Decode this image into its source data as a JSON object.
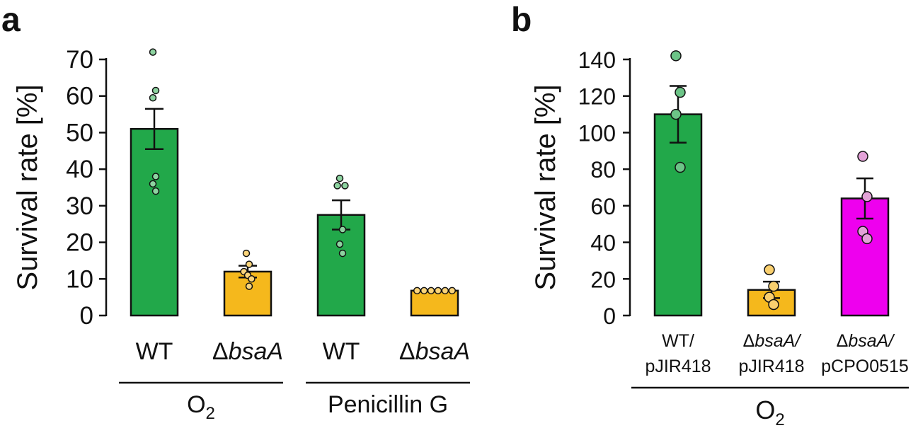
{
  "chart_data": [
    {
      "panel": "a",
      "type": "bar",
      "ylabel": "Survival rate [%]",
      "ylim": [
        0,
        70
      ],
      "yticks": [
        0,
        10,
        20,
        30,
        40,
        50,
        60,
        70
      ],
      "categories": [
        {
          "prefix": "",
          "italic": "",
          "text": "WT"
        },
        {
          "prefix": "Δ",
          "italic": "bsaA",
          "text": "ΔbsaA"
        },
        {
          "prefix": "",
          "italic": "",
          "text": "WT"
        },
        {
          "prefix": "Δ",
          "italic": "bsaA",
          "text": "ΔbsaA"
        }
      ],
      "groups": [
        {
          "base": "O",
          "sub": "2",
          "label": "O2",
          "span": [
            0,
            1
          ]
        },
        {
          "base": "Penicillin G",
          "sub": "",
          "label": "Penicillin G",
          "span": [
            2,
            3
          ]
        }
      ],
      "bars": [
        {
          "mean": 51,
          "sem": 5.5,
          "color": "#22a84a",
          "dot_color": "#8dd3a0",
          "points": [
            72,
            61.5,
            59.5,
            38,
            36,
            34
          ]
        },
        {
          "mean": 12,
          "sem": 1.6,
          "color": "#f5b81c",
          "dot_color": "#fad47a",
          "points": [
            17,
            14,
            12,
            11,
            10,
            8
          ]
        },
        {
          "mean": 27.5,
          "sem": 4,
          "color": "#22a84a",
          "dot_color": "#8dd3a0",
          "points": [
            37.5,
            35.5,
            35.5,
            23.5,
            19.5,
            17
          ]
        },
        {
          "mean": 6.8,
          "sem": 0.2,
          "color": "#f5b81c",
          "dot_color": "#fad47a",
          "points": [
            6.8,
            6.8,
            6.8,
            6.8,
            6.8,
            6.8
          ]
        }
      ]
    },
    {
      "panel": "b",
      "type": "bar",
      "ylabel": "Survival rate [%]",
      "ylim": [
        0,
        140
      ],
      "yticks": [
        0,
        20,
        40,
        60,
        80,
        100,
        120,
        140
      ],
      "categories": [
        {
          "line1_prefix": "",
          "line1_italic": "",
          "line1": "WT/",
          "line2": "pJIR418",
          "text": "WT/ pJIR418"
        },
        {
          "line1_prefix": "Δ",
          "line1_italic": "bsaA/",
          "line1": "ΔbsaA/",
          "line2": "pJIR418",
          "text": "ΔbsaA/ pJIR418"
        },
        {
          "line1_prefix": "Δ",
          "line1_italic": "bsaA/",
          "line1": "ΔbsaA/",
          "line2": "pCPO0515",
          "text": "ΔbsaA/ pCPO0515"
        }
      ],
      "groups": [
        {
          "base": "O",
          "sub": "2",
          "label": "O2",
          "span": [
            0,
            2
          ]
        }
      ],
      "bars": [
        {
          "mean": 110,
          "sem": 15.5,
          "color": "#22a84a",
          "dot_color": "#6cc487",
          "points": [
            142,
            122,
            110,
            81
          ]
        },
        {
          "mean": 14,
          "sem": 4.5,
          "color": "#f5b81c",
          "dot_color": "#f9cf6e",
          "points": [
            25,
            16,
            10,
            6
          ]
        },
        {
          "mean": 64,
          "sem": 11,
          "color": "#ee00ee",
          "dot_color": "#e3a2d8",
          "points": [
            87,
            65,
            46,
            42
          ]
        }
      ]
    }
  ]
}
